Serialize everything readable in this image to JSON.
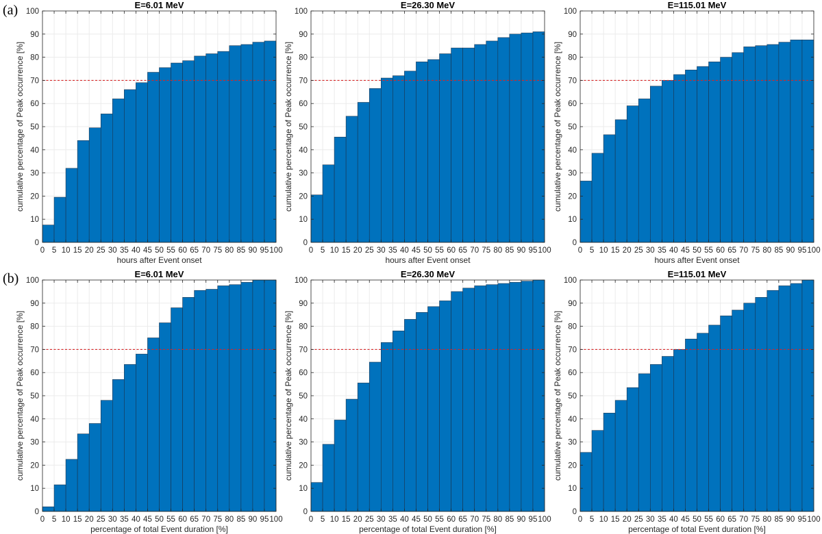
{
  "panel_labels": {
    "a": "(a)",
    "b": "(b)"
  },
  "chart_data": [
    {
      "type": "bar",
      "title": "E=6.01 MeV",
      "xlabel": "hours after Event onset",
      "ylabel": "cumulative percentage of Peak occurrence [%]",
      "xlim": [
        0,
        100
      ],
      "ylim": [
        0,
        100
      ],
      "xticks": [
        0,
        5,
        10,
        15,
        20,
        25,
        30,
        35,
        40,
        45,
        50,
        55,
        60,
        65,
        70,
        75,
        80,
        85,
        90,
        95,
        100
      ],
      "yticks": [
        0,
        10,
        20,
        30,
        40,
        50,
        60,
        70,
        80,
        90,
        100
      ],
      "bin_edges": [
        0,
        5,
        10,
        15,
        20,
        25,
        30,
        35,
        40,
        45,
        50,
        55,
        60,
        65,
        70,
        75,
        80,
        85,
        90,
        95,
        100
      ],
      "values": [
        7.5,
        19.5,
        32,
        44,
        49.5,
        55.5,
        62,
        66,
        69,
        73.5,
        75.5,
        77.5,
        78.5,
        80.5,
        81.5,
        82.5,
        85,
        85.5,
        86.5,
        87
      ],
      "reference_line": 70,
      "grid": true,
      "bar_color": "#0072BD",
      "line_color": "#D62728"
    },
    {
      "type": "bar",
      "title": "E=26.30 MeV",
      "xlabel": "hours after Event onset",
      "ylabel": "cumulative percentage of Peak occurrence [%]",
      "xlim": [
        0,
        100
      ],
      "ylim": [
        0,
        100
      ],
      "xticks": [
        0,
        5,
        10,
        15,
        20,
        25,
        30,
        35,
        40,
        45,
        50,
        55,
        60,
        65,
        70,
        75,
        80,
        85,
        90,
        95,
        100
      ],
      "yticks": [
        0,
        10,
        20,
        30,
        40,
        50,
        60,
        70,
        80,
        90,
        100
      ],
      "bin_edges": [
        0,
        5,
        10,
        15,
        20,
        25,
        30,
        35,
        40,
        45,
        50,
        55,
        60,
        65,
        70,
        75,
        80,
        85,
        90,
        95,
        100
      ],
      "values": [
        20.5,
        33.5,
        45.5,
        54.5,
        60.5,
        66.5,
        71,
        72,
        74,
        78,
        79,
        81.5,
        84,
        84,
        85.5,
        87,
        88.5,
        90,
        90.5,
        91
      ],
      "reference_line": 70,
      "grid": true,
      "bar_color": "#0072BD",
      "line_color": "#D62728"
    },
    {
      "type": "bar",
      "title": "E=115.01 MeV",
      "xlabel": "hours after Event onset",
      "ylabel": "cumulative percentage of Peak occurrence [%]",
      "xlim": [
        0,
        100
      ],
      "ylim": [
        0,
        100
      ],
      "xticks": [
        0,
        5,
        10,
        15,
        20,
        25,
        30,
        35,
        40,
        45,
        50,
        55,
        60,
        65,
        70,
        75,
        80,
        85,
        90,
        95,
        100
      ],
      "yticks": [
        0,
        10,
        20,
        30,
        40,
        50,
        60,
        70,
        80,
        90,
        100
      ],
      "bin_edges": [
        0,
        5,
        10,
        15,
        20,
        25,
        30,
        35,
        40,
        45,
        50,
        55,
        60,
        65,
        70,
        75,
        80,
        85,
        90,
        95,
        100
      ],
      "values": [
        26.5,
        38.5,
        46.5,
        53,
        59,
        62,
        67.5,
        70,
        72.5,
        74.5,
        76,
        78,
        80,
        82,
        84.5,
        85,
        85.5,
        86.5,
        87.5,
        87.5
      ],
      "reference_line": 70,
      "grid": true,
      "bar_color": "#0072BD",
      "line_color": "#D62728"
    },
    {
      "type": "bar",
      "title": "E=6.01 MeV",
      "xlabel": "percentage of total Event duration [%]",
      "ylabel": "cumulative percentage of Peak occurrence [%]",
      "xlim": [
        0,
        100
      ],
      "ylim": [
        0,
        100
      ],
      "xticks": [
        0,
        5,
        10,
        15,
        20,
        25,
        30,
        35,
        40,
        45,
        50,
        55,
        60,
        65,
        70,
        75,
        80,
        85,
        90,
        95,
        100
      ],
      "yticks": [
        0,
        10,
        20,
        30,
        40,
        50,
        60,
        70,
        80,
        90,
        100
      ],
      "bin_edges": [
        0,
        5,
        10,
        15,
        20,
        25,
        30,
        35,
        40,
        45,
        50,
        55,
        60,
        65,
        70,
        75,
        80,
        85,
        90,
        95,
        100
      ],
      "values": [
        2,
        11.5,
        22.5,
        33.5,
        38,
        48,
        57,
        63.5,
        68,
        75,
        81.5,
        88,
        92.5,
        95.5,
        96,
        97.5,
        98,
        99,
        100,
        100
      ],
      "reference_line": 70,
      "grid": true,
      "bar_color": "#0072BD",
      "line_color": "#D62728"
    },
    {
      "type": "bar",
      "title": "E=26.30 MeV",
      "xlabel": "percentage of total Event duration [%]",
      "ylabel": "cumulative percentage of Peak occurrence [%]",
      "xlim": [
        0,
        100
      ],
      "ylim": [
        0,
        100
      ],
      "xticks": [
        0,
        5,
        10,
        15,
        20,
        25,
        30,
        35,
        40,
        45,
        50,
        55,
        60,
        65,
        70,
        75,
        80,
        85,
        90,
        95,
        100
      ],
      "yticks": [
        0,
        10,
        20,
        30,
        40,
        50,
        60,
        70,
        80,
        90,
        100
      ],
      "bin_edges": [
        0,
        5,
        10,
        15,
        20,
        25,
        30,
        35,
        40,
        45,
        50,
        55,
        60,
        65,
        70,
        75,
        80,
        85,
        90,
        95,
        100
      ],
      "values": [
        12.5,
        29,
        39.5,
        48.5,
        55.5,
        64.5,
        73,
        78,
        83,
        86,
        88.5,
        91,
        95,
        96.5,
        97.5,
        98,
        98.5,
        99,
        99.5,
        100
      ],
      "reference_line": 70,
      "grid": true,
      "bar_color": "#0072BD",
      "line_color": "#D62728"
    },
    {
      "type": "bar",
      "title": "E=115.01 MeV",
      "xlabel": "percentage of total Event duration [%]",
      "ylabel": "cumulative percentage of Peak occurrence [%]",
      "xlim": [
        0,
        100
      ],
      "ylim": [
        0,
        100
      ],
      "xticks": [
        0,
        5,
        10,
        15,
        20,
        25,
        30,
        35,
        40,
        45,
        50,
        55,
        60,
        65,
        70,
        75,
        80,
        85,
        90,
        95,
        100
      ],
      "yticks": [
        0,
        10,
        20,
        30,
        40,
        50,
        60,
        70,
        80,
        90,
        100
      ],
      "bin_edges": [
        0,
        5,
        10,
        15,
        20,
        25,
        30,
        35,
        40,
        45,
        50,
        55,
        60,
        65,
        70,
        75,
        80,
        85,
        90,
        95,
        100
      ],
      "values": [
        25.5,
        35,
        42.5,
        48,
        53.5,
        59.5,
        63.5,
        67,
        70,
        74.5,
        77,
        80.5,
        84.5,
        87,
        90,
        92.5,
        95.5,
        97.5,
        98.5,
        100
      ],
      "reference_line": 70,
      "grid": true,
      "bar_color": "#0072BD",
      "line_color": "#D62728"
    }
  ]
}
